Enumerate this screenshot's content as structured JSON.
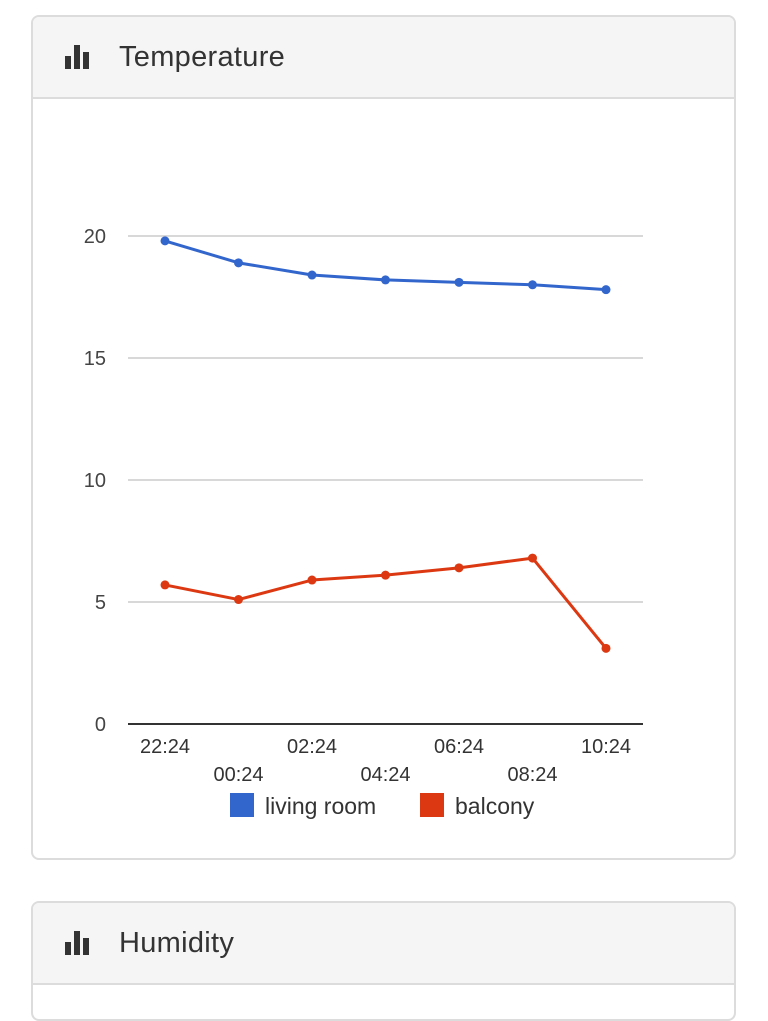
{
  "cards": [
    {
      "title": "Temperature",
      "icon": "bar-chart-icon"
    },
    {
      "title": "Humidity",
      "icon": "bar-chart-icon"
    }
  ],
  "chart_data": {
    "type": "line",
    "x": [
      "22:24",
      "00:24",
      "02:24",
      "04:24",
      "06:24",
      "08:24",
      "10:24"
    ],
    "ylim": [
      0,
      20
    ],
    "yticks": [
      0,
      5,
      10,
      15,
      20
    ],
    "grid": true,
    "legend": "bottom",
    "series": [
      {
        "name": "living room",
        "color": "#3366cc",
        "values": [
          19.8,
          18.9,
          18.4,
          18.2,
          18.1,
          18.0,
          17.8
        ]
      },
      {
        "name": "balcony",
        "color": "#dc3912",
        "values": [
          5.7,
          5.1,
          5.9,
          6.1,
          6.4,
          6.8,
          3.1
        ]
      }
    ]
  }
}
